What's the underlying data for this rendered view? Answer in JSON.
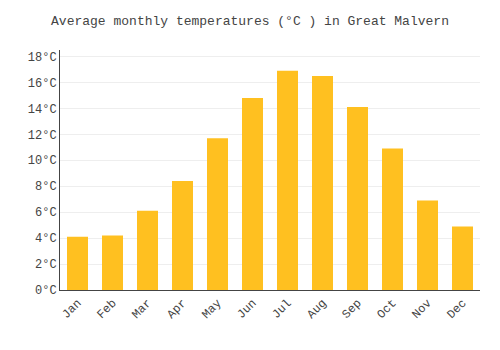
{
  "chart_data": {
    "type": "bar",
    "title": "Average monthly temperatures (°C ) in Great Malvern",
    "categories": [
      "Jan",
      "Feb",
      "Mar",
      "Apr",
      "May",
      "Jun",
      "Jul",
      "Aug",
      "Sep",
      "Oct",
      "Nov",
      "Dec"
    ],
    "values": [
      4.1,
      4.2,
      6.1,
      8.4,
      11.7,
      14.8,
      16.9,
      16.5,
      14.1,
      10.9,
      6.9,
      4.9
    ],
    "color": "#FFC020",
    "ylim": [
      0,
      18.5
    ],
    "yticks": [
      {
        "value": 0,
        "label": "0°C"
      },
      {
        "value": 2,
        "label": "2°C"
      },
      {
        "value": 4,
        "label": "4°C"
      },
      {
        "value": 6,
        "label": "6°C"
      },
      {
        "value": 8,
        "label": "8°C"
      },
      {
        "value": 10,
        "label": "10°C"
      },
      {
        "value": 12,
        "label": "12°C"
      },
      {
        "value": 14,
        "label": "14°C"
      },
      {
        "value": 16,
        "label": "16°C"
      },
      {
        "value": 18,
        "label": "18°C"
      }
    ],
    "grid": true
  }
}
